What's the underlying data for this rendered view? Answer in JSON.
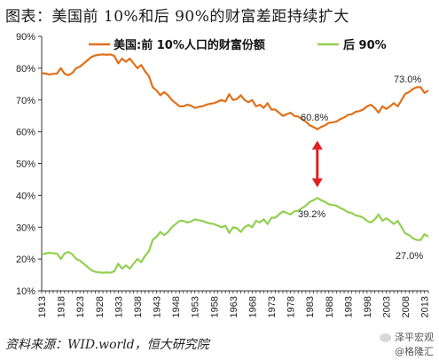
{
  "title": "图表：美国前 10%和后 90%的财富差距持续扩大",
  "source": "资料来源：WID.world，恒大研究院",
  "watermark": {
    "line1": "泽平宏观",
    "line2": "@格隆汇"
  },
  "colors": {
    "top10": "#E0701A",
    "bottom90": "#92D050",
    "arrow": "#E02020",
    "axis": "#333333"
  },
  "chart_data": {
    "type": "line",
    "ylim": [
      0.1,
      0.9
    ],
    "y_ticks": [
      "10%",
      "20%",
      "30%",
      "40%",
      "50%",
      "60%",
      "70%",
      "80%",
      "90%"
    ],
    "x_tick_labels": [
      "1913",
      "1918",
      "1923",
      "1928",
      "1933",
      "1938",
      "1943",
      "1948",
      "1953",
      "1958",
      "1963",
      "1968",
      "1973",
      "1978",
      "1983",
      "1988",
      "1993",
      "1998",
      "2003",
      "2008",
      "2013"
    ],
    "x": [
      1913,
      1914,
      1915,
      1916,
      1917,
      1918,
      1919,
      1920,
      1921,
      1922,
      1923,
      1924,
      1925,
      1926,
      1927,
      1928,
      1929,
      1930,
      1931,
      1932,
      1933,
      1934,
      1935,
      1936,
      1937,
      1938,
      1939,
      1940,
      1941,
      1942,
      1943,
      1944,
      1945,
      1946,
      1947,
      1948,
      1949,
      1950,
      1951,
      1952,
      1953,
      1954,
      1955,
      1956,
      1957,
      1958,
      1959,
      1960,
      1961,
      1962,
      1963,
      1964,
      1965,
      1966,
      1967,
      1968,
      1969,
      1970,
      1971,
      1972,
      1973,
      1974,
      1975,
      1976,
      1977,
      1978,
      1979,
      1980,
      1981,
      1982,
      1983,
      1984,
      1985,
      1986,
      1987,
      1988,
      1989,
      1990,
      1991,
      1992,
      1993,
      1994,
      1995,
      1996,
      1997,
      1998,
      1999,
      2000,
      2001,
      2002,
      2003,
      2004,
      2005,
      2006,
      2007,
      2008,
      2009,
      2010,
      2011,
      2012,
      2013,
      2014
    ],
    "series": [
      {
        "name": "美国:前 10%人口的财富份额",
        "values": [
          0.785,
          0.783,
          0.78,
          0.782,
          0.783,
          0.8,
          0.782,
          0.778,
          0.785,
          0.8,
          0.805,
          0.815,
          0.825,
          0.835,
          0.84,
          0.842,
          0.843,
          0.842,
          0.843,
          0.838,
          0.815,
          0.83,
          0.82,
          0.83,
          0.815,
          0.8,
          0.81,
          0.79,
          0.775,
          0.74,
          0.73,
          0.715,
          0.725,
          0.715,
          0.7,
          0.69,
          0.68,
          0.68,
          0.685,
          0.682,
          0.675,
          0.678,
          0.68,
          0.685,
          0.688,
          0.69,
          0.695,
          0.7,
          0.695,
          0.718,
          0.7,
          0.703,
          0.715,
          0.7,
          0.693,
          0.7,
          0.68,
          0.685,
          0.675,
          0.69,
          0.67,
          0.67,
          0.66,
          0.65,
          0.655,
          0.66,
          0.65,
          0.648,
          0.64,
          0.632,
          0.62,
          0.615,
          0.608,
          0.615,
          0.62,
          0.628,
          0.63,
          0.632,
          0.64,
          0.645,
          0.653,
          0.655,
          0.663,
          0.665,
          0.67,
          0.68,
          0.685,
          0.675,
          0.66,
          0.68,
          0.672,
          0.68,
          0.69,
          0.68,
          0.7,
          0.72,
          0.725,
          0.735,
          0.74,
          0.74,
          0.722,
          0.73
        ],
        "label": "73.0%",
        "min_label": "60.8%"
      },
      {
        "name": "后 90%",
        "values": [
          0.215,
          0.217,
          0.22,
          0.218,
          0.217,
          0.2,
          0.218,
          0.222,
          0.215,
          0.2,
          0.195,
          0.185,
          0.175,
          0.165,
          0.16,
          0.158,
          0.157,
          0.158,
          0.157,
          0.162,
          0.185,
          0.17,
          0.18,
          0.17,
          0.185,
          0.2,
          0.19,
          0.21,
          0.225,
          0.26,
          0.27,
          0.285,
          0.275,
          0.285,
          0.3,
          0.31,
          0.32,
          0.32,
          0.315,
          0.318,
          0.325,
          0.322,
          0.32,
          0.315,
          0.312,
          0.31,
          0.305,
          0.3,
          0.305,
          0.282,
          0.3,
          0.297,
          0.285,
          0.3,
          0.307,
          0.3,
          0.32,
          0.315,
          0.325,
          0.31,
          0.33,
          0.33,
          0.34,
          0.35,
          0.345,
          0.34,
          0.35,
          0.352,
          0.36,
          0.368,
          0.38,
          0.385,
          0.392,
          0.385,
          0.38,
          0.372,
          0.37,
          0.368,
          0.36,
          0.355,
          0.347,
          0.345,
          0.337,
          0.335,
          0.33,
          0.32,
          0.315,
          0.325,
          0.34,
          0.32,
          0.328,
          0.32,
          0.31,
          0.32,
          0.3,
          0.28,
          0.275,
          0.265,
          0.26,
          0.26,
          0.278,
          0.27
        ],
        "label": "27.0%",
        "max_label": "39.2%"
      }
    ]
  }
}
